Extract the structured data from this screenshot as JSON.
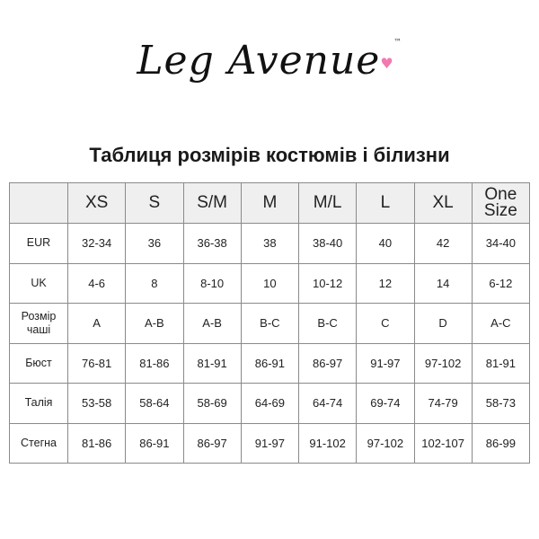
{
  "logo": {
    "text": "Leg Avenue",
    "tm": "™",
    "heart_color": "#f07ab0"
  },
  "title": "Таблиця розмірів костюмів і білизни",
  "table": {
    "header_bg": "#efefef",
    "columns": [
      "XS",
      "S",
      "S/M",
      "M",
      "M/L",
      "L",
      "XL",
      "One Size"
    ],
    "rows": [
      {
        "label": "EUR",
        "values": [
          "32-34",
          "36",
          "36-38",
          "38",
          "38-40",
          "40",
          "42",
          "34-40"
        ]
      },
      {
        "label": "UK",
        "values": [
          "4-6",
          "8",
          "8-10",
          "10",
          "10-12",
          "12",
          "14",
          "6-12"
        ]
      },
      {
        "label": "Розмір чаші",
        "values": [
          "A",
          "A-B",
          "A-B",
          "B-C",
          "B-C",
          "C",
          "D",
          "A-C"
        ]
      },
      {
        "label": "Бюст",
        "values": [
          "76-81",
          "81-86",
          "81-91",
          "86-91",
          "86-97",
          "91-97",
          "97-102",
          "81-91"
        ]
      },
      {
        "label": "Талія",
        "values": [
          "53-58",
          "58-64",
          "58-69",
          "64-69",
          "64-74",
          "69-74",
          "74-79",
          "58-73"
        ]
      },
      {
        "label": "Стегна",
        "values": [
          "81-86",
          "86-91",
          "86-97",
          "91-97",
          "91-102",
          "97-102",
          "102-107",
          "86-99"
        ]
      }
    ]
  }
}
